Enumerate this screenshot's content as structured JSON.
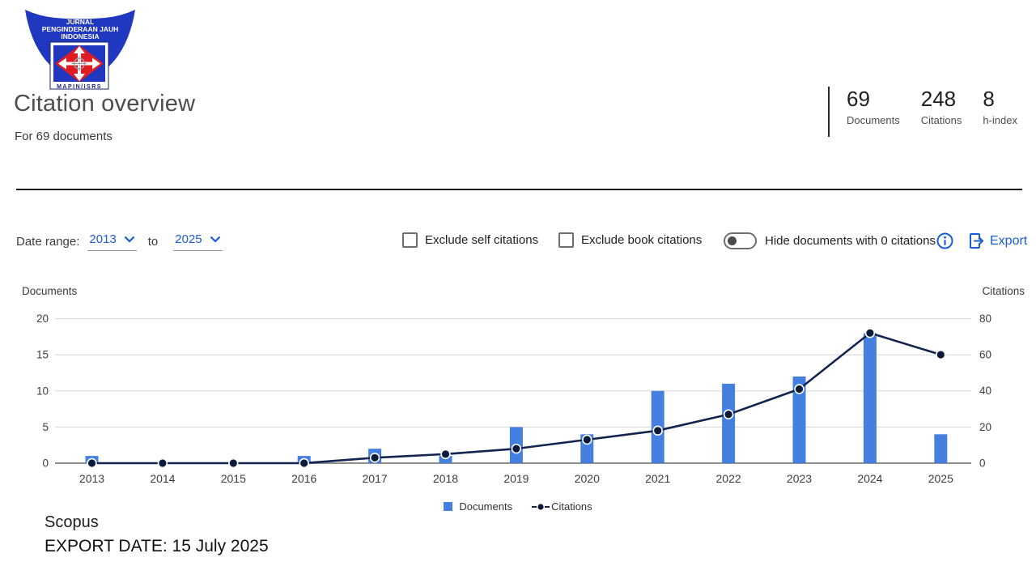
{
  "logo": {
    "title_lines": [
      "JURNAL",
      "PENGINDERAAN JAUH",
      "INDONESIA"
    ],
    "subtitle": "MAPIN/ISRS"
  },
  "header": {
    "title": "Citation overview",
    "subtitle": "For 69 documents"
  },
  "stats": [
    {
      "value": "69",
      "label": "Documents"
    },
    {
      "value": "248",
      "label": "Citations"
    },
    {
      "value": "8",
      "label": "h-index"
    }
  ],
  "controls": {
    "date_range_label": "Date range:",
    "from_year": "2013",
    "to_label": "to",
    "to_year": "2025",
    "checkbox_self_label": "Exclude self citations",
    "checkbox_book_label": "Exclude book citations",
    "toggle_label": "Hide documents with 0 citations",
    "export_label": "Export"
  },
  "chart_data": {
    "type": "bar",
    "categories": [
      "2013",
      "2014",
      "2015",
      "2016",
      "2017",
      "2018",
      "2019",
      "2020",
      "2021",
      "2022",
      "2023",
      "2024",
      "2025"
    ],
    "series": [
      {
        "name": "Documents",
        "type": "bar",
        "axis": "left",
        "values": [
          1,
          0,
          0,
          1,
          2,
          1,
          5,
          4,
          10,
          11,
          12,
          18,
          4
        ]
      },
      {
        "name": "Citations",
        "type": "line",
        "axis": "right",
        "values": [
          0,
          0,
          0,
          0,
          3,
          5,
          8,
          13,
          18,
          27,
          41,
          72,
          60
        ]
      }
    ],
    "left_axis": {
      "title": "Documents",
      "ticks": [
        0,
        5,
        10,
        15,
        20
      ],
      "range": [
        0,
        20
      ]
    },
    "right_axis": {
      "title": "Citations",
      "ticks": [
        0,
        20,
        40,
        60,
        80
      ],
      "range": [
        0,
        80
      ]
    },
    "grid": true,
    "legend_position": "bottom-center"
  },
  "colors": {
    "bar": "#4580e0",
    "line": "#132450",
    "dot": "#0c1a3c",
    "link_blue": "#1b5cd8",
    "grid": "#d7d7d7",
    "axis_line": "#8e8e8e",
    "logo_blue": "#2037c0",
    "logo_red": "#e11b22",
    "logo_navy": "#15247a"
  },
  "footer": {
    "source": "Scopus",
    "export_date": "EXPORT DATE: 15 July 2025"
  }
}
